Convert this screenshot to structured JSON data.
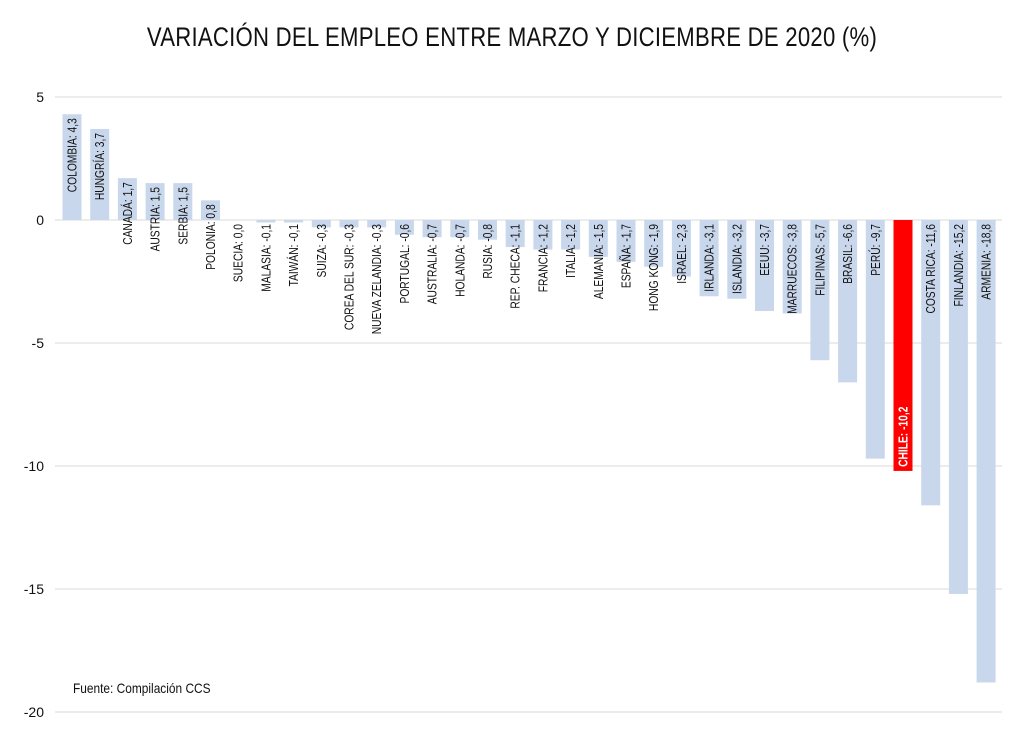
{
  "chart_data": {
    "type": "bar",
    "title": "VARIACIÓN DEL EMPLEO ENTRE MARZO Y DICIEMBRE DE 2020 (%)",
    "xlabel": "",
    "ylabel": "",
    "ylim": [
      -20,
      5
    ],
    "yticks": [
      5,
      0,
      -5,
      -10,
      -15,
      -20
    ],
    "grid": true,
    "categories": [
      "COLOMBIA",
      "HUNGRÍA",
      "CANADÁ",
      "AUSTRIA",
      "SERBIA",
      "POLONIA",
      "SUECIA",
      "MALASIA",
      "TAIWÁN",
      "SUIZA",
      "COREA DEL SUR",
      "NUEVA ZELANDIA",
      "PORTUGAL",
      "AUSTRALIA",
      "HOLANDA",
      "RUSIA",
      "REP. CHECA",
      "FRANCIA",
      "ITALIA",
      "ALEMANIA",
      "ESPAÑA",
      "HONG KONG",
      "ISRAEL",
      "IRLANDA",
      "ISLANDIA",
      "EEUU",
      "MARRUECOS",
      "FILIPINAS",
      "BRASIL",
      "PERÚ",
      "CHILE",
      "COSTA RICA",
      "FINLANDIA",
      "ARMENIA"
    ],
    "values": [
      4.3,
      3.7,
      1.7,
      1.5,
      1.5,
      0.8,
      0.0,
      -0.1,
      -0.1,
      -0.3,
      -0.3,
      -0.3,
      -0.6,
      -0.7,
      -0.7,
      -0.8,
      -1.1,
      -1.2,
      -1.2,
      -1.5,
      -1.7,
      -1.9,
      -2.3,
      -3.1,
      -3.2,
      -3.7,
      -3.8,
      -5.7,
      -6.6,
      -9.7,
      -10.2,
      -11.6,
      -15.2,
      -18.8
    ],
    "bar_labels": [
      "COLOMBIA: 4,3",
      "HUNGRÍA: 3,7",
      "CANADÁ: 1,7",
      "AUSTRIA: 1,5",
      "SERBIA: 1,5",
      "POLONIA: 0,8",
      "SUECIA: 0,0",
      "MALASIA: -0,1",
      "TAIWÁN: -0,1",
      "SUIZA: -0,3",
      "COREA DEL SUR: -0,3",
      "NUEVA ZELANDIA: -0,3",
      "PORTUGAL: -0,6",
      "AUSTRALIA: -0,7",
      "HOLANDA: -0,7",
      "RUSIA: -0,8",
      "REP. CHECA: -1,1",
      "FRANCIA: -1,2",
      "ITALIA: -1,2",
      "ALEMANIA: -1,5",
      "ESPAÑA: -1,7",
      "HONG KONG: -1,9",
      "ISRAEL: -2,3",
      "IRLANDA: -3,1",
      "ISLANDIA: -3,2",
      "EEUU: -3,7",
      "MARRUECOS: -3,8",
      "FILIPINAS: -5,7",
      "BRASIL: -6,6",
      "PERÚ: -9,7",
      "CHILE: -10,2",
      "COSTA RICA: -11,6",
      "FINLANDIA: -15,2",
      "ARMENIA: -18,8"
    ],
    "highlight": "CHILE",
    "colors": {
      "bar": "#c9d7ec",
      "highlight": "#ff0000",
      "grid": "#d9d9d9",
      "text": "#111111"
    },
    "source": "Fuente: Compilación CCS"
  }
}
